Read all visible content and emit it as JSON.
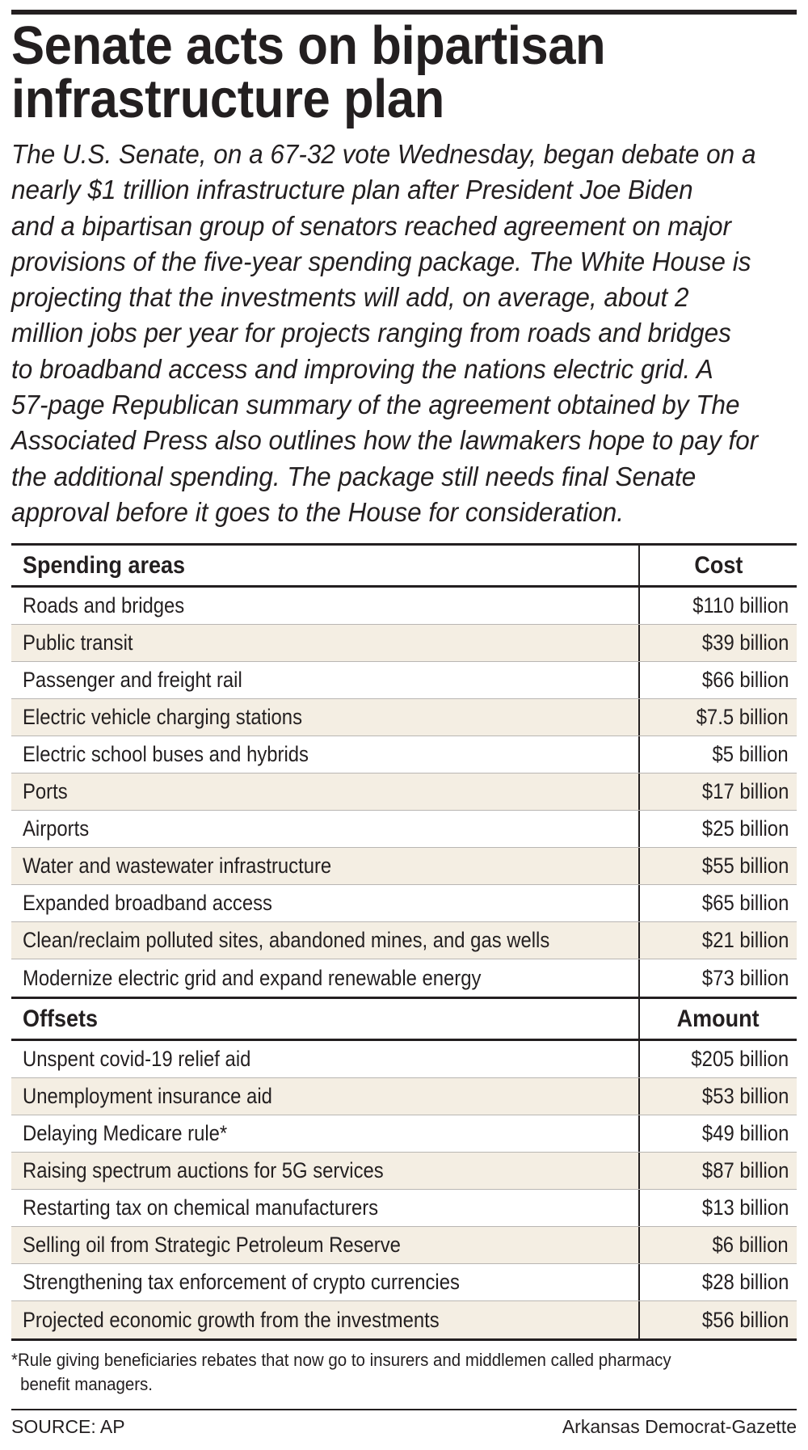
{
  "headline": {
    "line1": "Senate acts on bipartisan",
    "line2": "infrastructure plan"
  },
  "intro_lines": [
    "The U.S. Senate, on a 67-32 vote Wednesday, began debate on a",
    "nearly $1 trillion infrastructure plan after President Joe Biden",
    "and a bipartisan group of senators reached agreement on major",
    "provisions of the five-year spending package. The White House is",
    "projecting that the investments will add, on average, about 2",
    "million jobs per year for projects ranging from roads and bridges",
    "to broadband access and improving the nations electric grid. A",
    "57-page Republican summary of the agreement obtained by The",
    "Associated Press also outlines how the lawmakers hope to pay for",
    "the additional spending. The package still needs final Senate",
    "approval before it goes to the House for consideration."
  ],
  "spending": {
    "header_label": "Spending areas",
    "header_value": "Cost",
    "rows": [
      {
        "label": "Roads and bridges",
        "value": "$110 billion"
      },
      {
        "label": "Public transit",
        "value": "$39 billion"
      },
      {
        "label": "Passenger and freight rail",
        "value": "$66 billion"
      },
      {
        "label": "Electric vehicle charging stations",
        "value": "$7.5 billion"
      },
      {
        "label": "Electric school buses and hybrids",
        "value": "$5 billion"
      },
      {
        "label": "Ports",
        "value": "$17 billion"
      },
      {
        "label": "Airports",
        "value": "$25 billion"
      },
      {
        "label": "Water and wastewater infrastructure",
        "value": "$55 billion"
      },
      {
        "label": "Expanded broadband access",
        "value": "$65 billion"
      },
      {
        "label": "Clean/reclaim polluted sites, abandoned mines, and gas wells",
        "value": "$21 billion"
      },
      {
        "label": "Modernize electric grid and expand renewable energy",
        "value": "$73 billion"
      }
    ]
  },
  "offsets": {
    "header_label": "Offsets",
    "header_value": "Amount",
    "rows": [
      {
        "label": "Unspent covid-19 relief aid",
        "value": "$205 billion"
      },
      {
        "label": "Unemployment insurance aid",
        "value": "$53 billion"
      },
      {
        "label": "Delaying Medicare rule*",
        "value": "$49 billion"
      },
      {
        "label": "Raising spectrum auctions for 5G services",
        "value": "$87 billion"
      },
      {
        "label": "Restarting tax on chemical manufacturers",
        "value": "$13 billion"
      },
      {
        "label": "Selling oil from Strategic Petroleum Reserve",
        "value": "$6 billion"
      },
      {
        "label": "Strengthening tax enforcement of crypto currencies",
        "value": "$28 billion"
      },
      {
        "label": "Projected economic growth from the investments",
        "value": "$56 billion"
      }
    ]
  },
  "footnote": {
    "line1": "*Rule giving beneficiaries rebates that now go to insurers and middlemen called pharmacy",
    "line2": "benefit managers."
  },
  "source": "SOURCE: AP",
  "credit": "Arkansas Democrat-Gazette",
  "colors": {
    "ink": "#231f20",
    "row_shade": "#f4eee3",
    "row_divider": "#b9b6b3"
  }
}
